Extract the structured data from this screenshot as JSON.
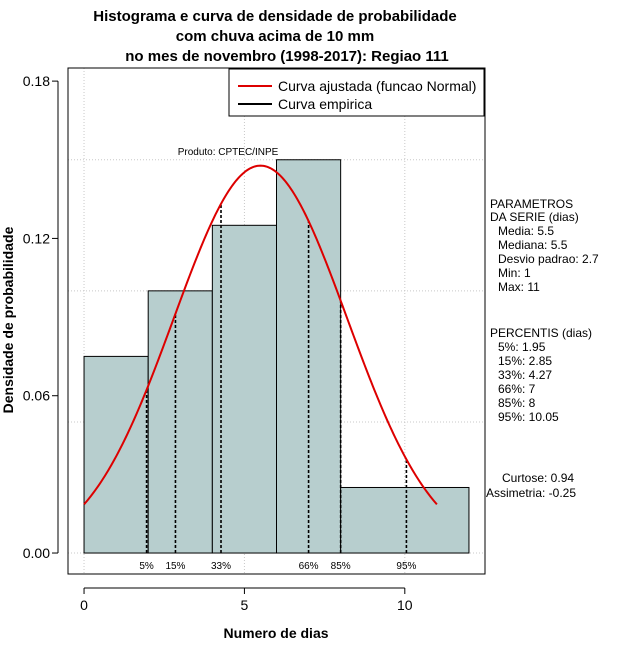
{
  "chart_data": {
    "type": "bar",
    "title_lines": [
      "Histograma e curva de densidade de probabilidade",
      "com chuva acima de 10 mm",
      "no mes de novembro (1998-2017): Regiao 111"
    ],
    "xlabel": "Numero de dias",
    "ylabel": "Densidade de probabilidade",
    "xlim": [
      -0.5,
      12.5
    ],
    "ylim": [
      -0.008,
      0.185
    ],
    "x_ticks": [
      0,
      5,
      10
    ],
    "y_ticks": [
      0.0,
      0.06,
      0.12,
      0.18
    ],
    "y_tick_labels": [
      "0.00",
      "0.06",
      "0.12",
      "0.18"
    ],
    "grid": true,
    "grid_x": [
      0,
      5,
      10
    ],
    "grid_y": [
      0.0,
      0.05,
      0.1,
      0.15
    ],
    "bars_color": "#b7cece",
    "curve_color": "#dd0000",
    "bins": [
      {
        "x0": 0,
        "x1": 2,
        "density": 0.075
      },
      {
        "x0": 2,
        "x1": 4,
        "density": 0.1
      },
      {
        "x0": 4,
        "x1": 6,
        "density": 0.125
      },
      {
        "x0": 6,
        "x1": 8,
        "density": 0.15
      },
      {
        "x0": 8,
        "x1": 12,
        "density": 0.025
      }
    ],
    "normal_curve": {
      "mean": 5.5,
      "sd": 2.7,
      "x_from": 0,
      "x_to": 11
    },
    "legend": {
      "position": "top-right",
      "entries": [
        {
          "label": "Curva ajustada (funcao Normal)",
          "color": "#dd0000"
        },
        {
          "label": "Curva empirica",
          "color": "#000000"
        }
      ]
    },
    "product_label": "Produto: CPTEC/INPE",
    "percentile_lines": [
      {
        "label": "5%",
        "x": 1.95
      },
      {
        "label": "15%",
        "x": 2.85
      },
      {
        "label": "33%",
        "x": 4.27
      },
      {
        "label": "66%",
        "x": 7
      },
      {
        "label": "85%",
        "x": 8
      },
      {
        "label": "95%",
        "x": 10.05
      }
    ],
    "side_panel": {
      "params_header": [
        "PARAMETROS",
        "DA SERIE (dias)"
      ],
      "params": [
        "Media: 5.5",
        "Mediana: 5.5",
        "Desvio padrao: 2.7",
        "Min: 1",
        "Max: 11"
      ],
      "percentis_header": "PERCENTIS (dias)",
      "percentis": [
        "5%: 1.95",
        "15%: 2.85",
        "33%: 4.27",
        "66%: 7",
        "85%: 8",
        "95%: 10.05"
      ],
      "curtose": "Curtose: 0.94",
      "assimetria": "Assimetria: -0.25"
    }
  }
}
